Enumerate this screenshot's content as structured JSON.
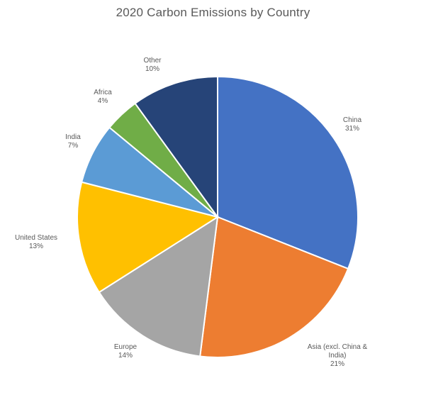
{
  "chart_data": {
    "type": "pie",
    "title": "2020 Carbon Emissions by Country",
    "slices": [
      {
        "label": "China",
        "value": 31,
        "value_label": "31%",
        "color": "#4472C4"
      },
      {
        "label": "Asia (excl. China & India)",
        "value": 21,
        "value_label": "21%",
        "color": "#ED7D31"
      },
      {
        "label": "Europe",
        "value": 14,
        "value_label": "14%",
        "color": "#A5A5A5"
      },
      {
        "label": "United States",
        "value": 13,
        "value_label": "13%",
        "color": "#FFC000"
      },
      {
        "label": "India",
        "value": 7,
        "value_label": "7%",
        "color": "#5B9BD5"
      },
      {
        "label": "Africa",
        "value": 4,
        "value_label": "4%",
        "color": "#70AD47"
      },
      {
        "label": "Other",
        "value": 10,
        "value_label": "10%",
        "color": "#264478"
      }
    ],
    "start_angle": "12 o'clock",
    "direction": "clockwise",
    "legend": "none"
  }
}
